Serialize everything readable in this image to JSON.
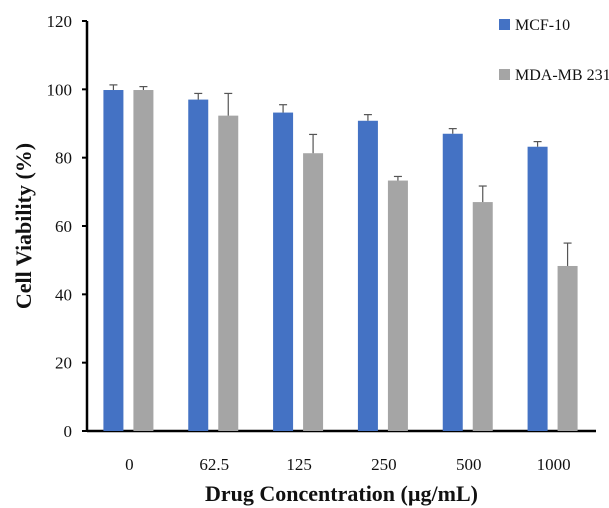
{
  "chart_data": {
    "type": "bar",
    "title": "",
    "xlabel": "Drug Concentration (µg/mL)",
    "ylabel": "Cell Viability (%)",
    "ylim": [
      0,
      120
    ],
    "yticks": [
      0,
      20,
      40,
      60,
      80,
      100,
      120
    ],
    "categories": [
      "0",
      "62.5",
      "125",
      "250",
      "500",
      "1000"
    ],
    "grid": false,
    "legend_position": "top-right",
    "series": [
      {
        "name": "MCF-10",
        "color": "#4472C4",
        "values": [
          99.8,
          97.0,
          93.2,
          90.8,
          87.0,
          83.2
        ],
        "errors": [
          1.5,
          1.8,
          2.3,
          1.8,
          1.5,
          1.5
        ]
      },
      {
        "name": "MDA-MB 231",
        "color": "#A5A5A5",
        "values": [
          99.8,
          92.3,
          81.3,
          73.3,
          67.0,
          48.3
        ],
        "errors": [
          1.0,
          6.5,
          5.5,
          1.2,
          4.7,
          6.7
        ]
      }
    ]
  }
}
